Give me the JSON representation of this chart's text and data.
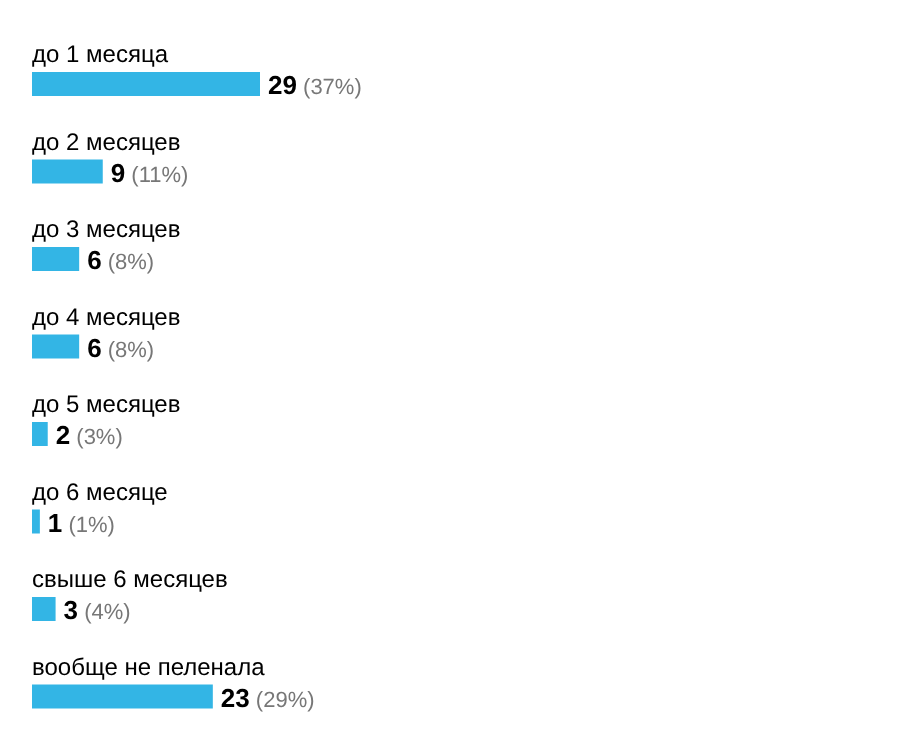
{
  "chart_data": {
    "type": "bar",
    "orientation": "horizontal",
    "categories": [
      "до 1 месяца",
      "до 2 месяцев",
      "до 3 месяцев",
      "до 4 месяцев",
      "до 5 месяцев",
      "до 6 месяце",
      "свыше 6 месяцев",
      "вообще не пеленала"
    ],
    "values": [
      29,
      9,
      6,
      6,
      2,
      1,
      3,
      23
    ],
    "color": "#33b5e5",
    "value_labels": [
      "29 (37%)",
      "9 (11%)",
      "6 (8%)",
      "6 (8%)",
      "2 (3%)",
      "1 (1%)",
      "3 (4%)",
      "23 (29%)"
    ],
    "tick_labels": "y",
    "grid": false,
    "legend": false
  }
}
